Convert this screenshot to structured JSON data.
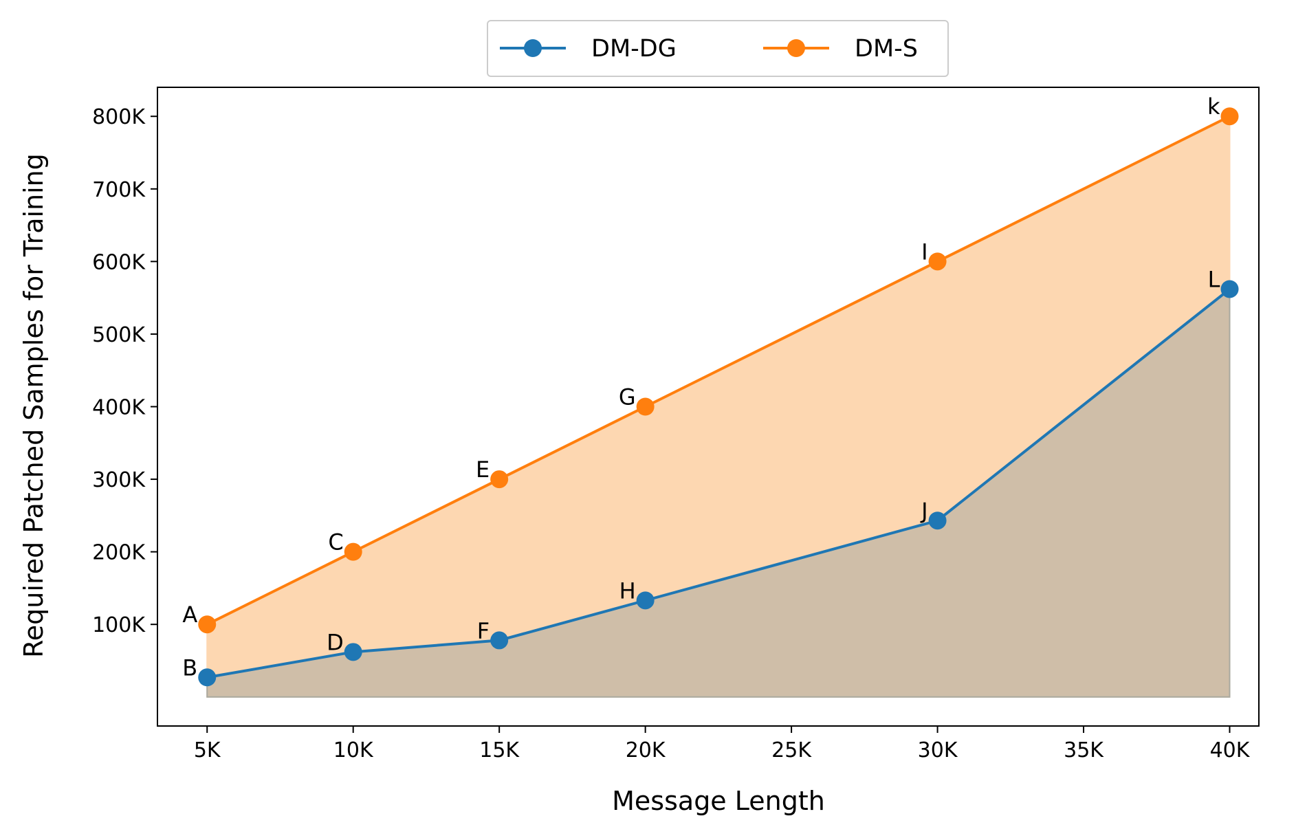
{
  "chart_data": {
    "type": "line",
    "xlabel": "Message Length",
    "ylabel": "Required Patched Samples for Training",
    "xlim": [
      3300,
      41000
    ],
    "ylim": [
      -40000,
      840000
    ],
    "x_ticks": [
      5000,
      10000,
      15000,
      20000,
      25000,
      30000,
      35000,
      40000
    ],
    "x_tick_labels": [
      "5K",
      "10K",
      "15K",
      "20K",
      "25K",
      "30K",
      "35K",
      "40K"
    ],
    "y_ticks": [
      100000,
      200000,
      300000,
      400000,
      500000,
      600000,
      700000,
      800000
    ],
    "y_tick_labels": [
      "100K",
      "200K",
      "300K",
      "400K",
      "500K",
      "600K",
      "700K",
      "800K"
    ],
    "grid": false,
    "legend_position": "top-center-outside",
    "series": [
      {
        "name": "DM-DG",
        "color": "#1f77b4",
        "fill_color": "#a9a9a0",
        "x": [
          5000,
          10000,
          15000,
          20000,
          30000,
          40000
        ],
        "y": [
          27000,
          62000,
          78000,
          133000,
          243000,
          562000
        ],
        "point_labels": [
          "B",
          "D",
          "F",
          "H",
          "J",
          "L"
        ]
      },
      {
        "name": "DM-S",
        "color": "#ff7f0e",
        "fill_color": "#fdd7b1",
        "x": [
          5000,
          10000,
          15000,
          20000,
          30000,
          40000
        ],
        "y": [
          100000,
          200000,
          300000,
          400000,
          600000,
          800000
        ],
        "point_labels": [
          "A",
          "C",
          "E",
          "G",
          "I",
          "k"
        ]
      }
    ]
  }
}
